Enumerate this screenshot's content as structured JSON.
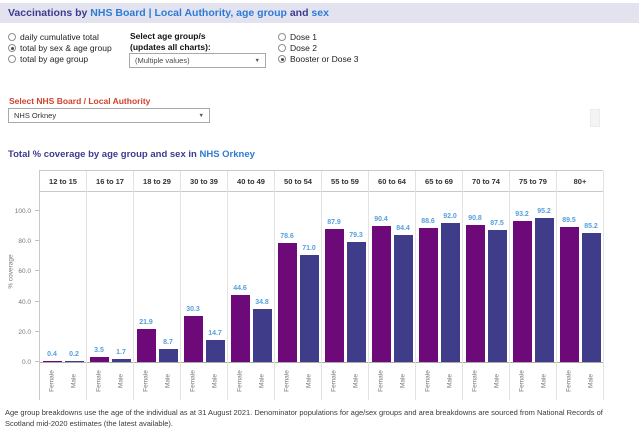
{
  "titlebar": {
    "part1": "Vaccinations by ",
    "part2": "NHS Board | Local Authority, age group ",
    "part3": "and ",
    "part4": "sex"
  },
  "view_options": {
    "items": [
      {
        "label": "daily cumulative total",
        "selected": false
      },
      {
        "label": "total by sex & age group",
        "selected": true
      },
      {
        "label": "total by age group",
        "selected": false
      }
    ]
  },
  "age_filter": {
    "label_line1": "Select age group/s",
    "label_line2": "(updates all charts):",
    "value": "(Multiple values)",
    "caret": "▼"
  },
  "dose_options": {
    "items": [
      {
        "label": "Dose 1",
        "selected": false
      },
      {
        "label": "Dose 2",
        "selected": false
      },
      {
        "label": "Booster or Dose 3",
        "selected": true
      }
    ]
  },
  "board_filter": {
    "label": "Select NHS Board / Local Authority",
    "value": "NHS Orkney",
    "caret": "▼"
  },
  "chart_title": {
    "prefix": "Total % coverage by age group and sex in ",
    "highlight": "NHS Orkney"
  },
  "chart_data": {
    "type": "bar",
    "title": "Total % coverage by age group and sex in NHS Orkney",
    "xlabel": "",
    "ylabel": "% coverage",
    "categories": [
      "12 to 15",
      "16 to 17",
      "18 to 29",
      "30 to 39",
      "40 to 49",
      "50 to 54",
      "55 to 59",
      "60 to 64",
      "65 to 69",
      "70 to 74",
      "75 to 79",
      "80+"
    ],
    "series": [
      {
        "name": "Female",
        "color": "#6d0979",
        "values": [
          0.4,
          3.5,
          21.9,
          30.3,
          44.6,
          78.6,
          87.9,
          90.4,
          88.6,
          90.8,
          93.2,
          89.5
        ]
      },
      {
        "name": "Male",
        "color": "#3f3c8a",
        "values": [
          0.2,
          1.7,
          8.7,
          14.7,
          34.8,
          71.0,
          79.3,
          84.4,
          92.0,
          87.5,
          95.2,
          85.2
        ]
      }
    ],
    "yticks": [
      0,
      20,
      40,
      60,
      80,
      100
    ],
    "ytick_labels": [
      "0.0",
      "20.0",
      "40.0",
      "60.0",
      "80.0",
      "100.0"
    ],
    "ylim": [
      0,
      112.5
    ],
    "grid": false,
    "legend": "none",
    "value_label_color": "#56a0dc"
  },
  "footer": {
    "note": "Age group breakdowns use the age of the individual as at 31 August 2021. Denominator populations for age/sex groups and area breakdowns are sourced from National Records of Scotland mid-2020 estimates (the latest available)."
  },
  "colors": {
    "title_dark": "#3b3b8f",
    "title_blue": "#2c7bd6",
    "red_label": "#d0422d",
    "female_bar": "#6d0979",
    "male_bar": "#3f3c8a",
    "value_label": "#56a0dc"
  }
}
